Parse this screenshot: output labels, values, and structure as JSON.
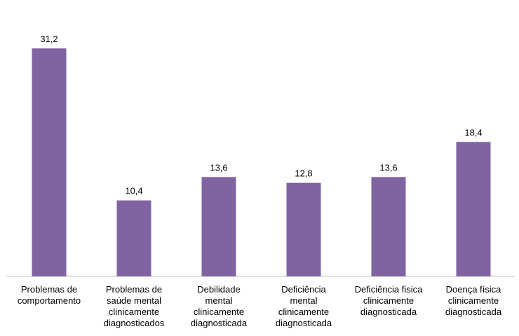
{
  "chart_data": {
    "type": "bar",
    "title": "",
    "xlabel": "",
    "ylabel": "",
    "categories": [
      "Problemas de\ncomportamento",
      "Problemas de\nsaúde mental\nclinicamente\ndiagnosticados",
      "Debilidade\nmental\nclinicamente\ndiagnosticada",
      "Deficiência\nmental\nclinicamente\ndiagnosticada",
      "Deficiência fisica\nclinicamente\ndiagnosticada",
      "Doença física\nclinicamente\ndiagnosticada"
    ],
    "values": [
      31.2,
      10.4,
      13.6,
      12.8,
      13.6,
      18.4
    ],
    "value_labels": [
      "31,2",
      "10,4",
      "13,6",
      "12,8",
      "13,6",
      "18,4"
    ],
    "ylim": [
      0,
      31.2
    ],
    "grid": false,
    "legend": "none",
    "colors": {
      "bar": "#8064A2",
      "axis": "#BFBFBF"
    }
  }
}
